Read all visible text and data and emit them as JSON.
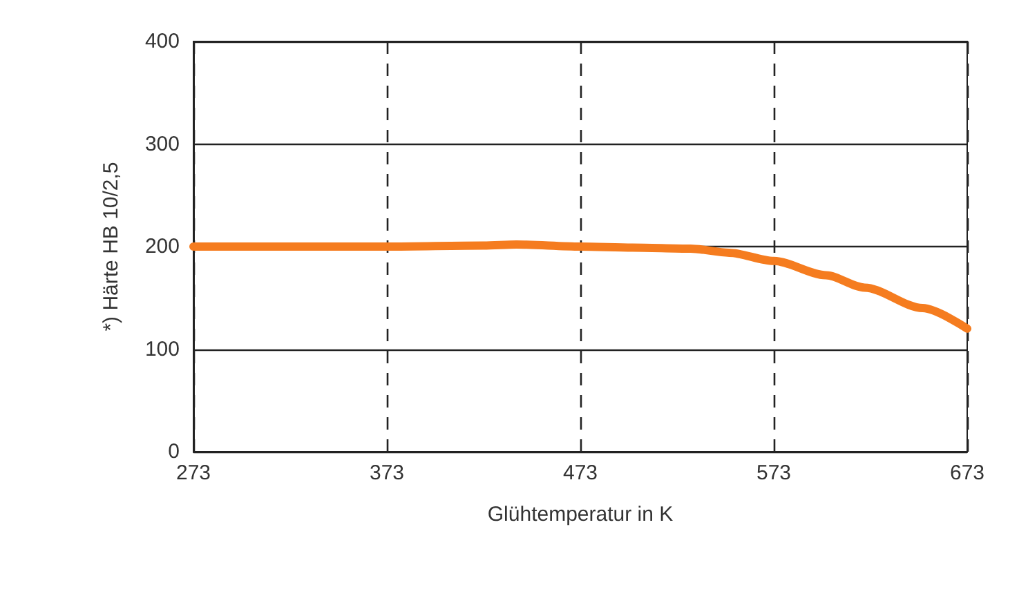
{
  "chart_data": {
    "type": "line",
    "xlabel": "Glühtemperatur in K",
    "ylabel": "*) Härte HB 10/2,5",
    "x": [
      273,
      323,
      373,
      423,
      440,
      473,
      500,
      530,
      550,
      573,
      600,
      620,
      650,
      673
    ],
    "series": [
      {
        "color": "#f57c1f",
        "values": [
          200,
          200,
          200,
          201,
          202,
          200,
          199,
          198,
          194,
          186,
          172,
          160,
          140,
          120
        ]
      }
    ],
    "xlim": [
      273,
      673
    ],
    "xticks": [
      273,
      373,
      473,
      573,
      673
    ],
    "ylim": [
      0,
      400
    ],
    "yticks": [
      0,
      100,
      200,
      300,
      400
    ],
    "grid": true,
    "marker": "none",
    "line_style": "solid"
  }
}
